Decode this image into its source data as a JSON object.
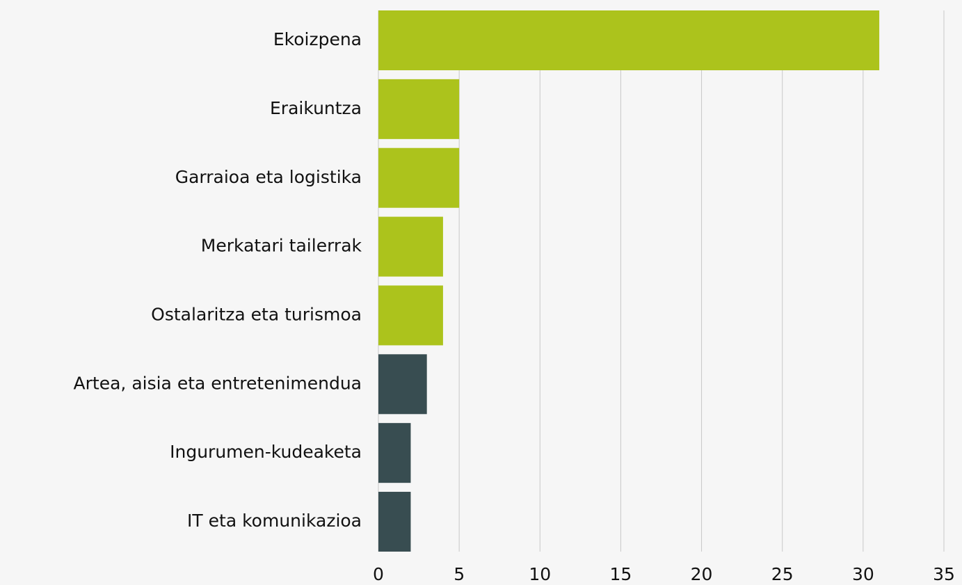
{
  "chart_data": {
    "type": "hbar",
    "categories": [
      "Ekoizpena",
      "Eraikuntza",
      "Garraioa eta logistika",
      "Merkatari tailerrak",
      "Ostalaritza eta turismoa",
      "Artea, aisia eta entretenimendua",
      "Ingurumen-kudeaketa",
      "IT eta komunikazioa"
    ],
    "values": [
      31,
      5,
      5,
      4,
      4,
      3,
      2,
      2
    ],
    "colors": [
      "#acc31c",
      "#acc31c",
      "#acc31c",
      "#acc31c",
      "#acc31c",
      "#384d51",
      "#384d51",
      "#384d51"
    ],
    "xlim": [
      0,
      35
    ],
    "xticks": [
      0,
      5,
      10,
      15,
      20,
      25,
      30,
      35
    ],
    "grid": true
  }
}
